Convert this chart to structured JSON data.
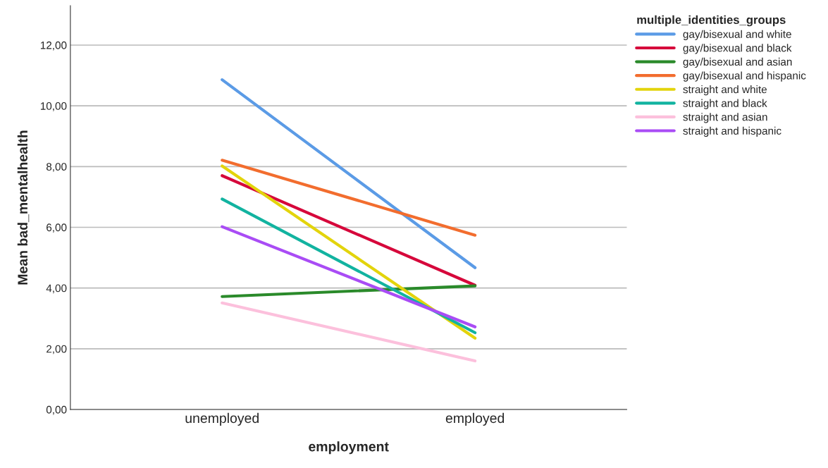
{
  "chart_data": {
    "type": "line",
    "xlabel": "employment",
    "ylabel": "Mean bad_mentalhealth",
    "legend_title": "multiple_identities_groups",
    "legend": "right",
    "grid": "y",
    "marker": "none",
    "line_style": "solid",
    "categories": [
      "unemployed",
      "employed"
    ],
    "ylim": [
      0,
      13.3
    ],
    "yticks": [
      {
        "value": 0,
        "label": "0,00"
      },
      {
        "value": 2,
        "label": "2,00"
      },
      {
        "value": 4,
        "label": "4,00"
      },
      {
        "value": 6,
        "label": "6,00"
      },
      {
        "value": 8,
        "label": "8,00"
      },
      {
        "value": 10,
        "label": "10,00"
      },
      {
        "value": 12,
        "label": "12,00"
      }
    ],
    "series": [
      {
        "name": "gay/bisexual and white",
        "color": "#5b9be6",
        "values": [
          10.86,
          4.67
        ]
      },
      {
        "name": "gay/bisexual and black",
        "color": "#d6083b",
        "values": [
          7.7,
          4.09
        ]
      },
      {
        "name": "gay/bisexual and asian",
        "color": "#2a8a2a",
        "values": [
          3.72,
          4.07
        ]
      },
      {
        "name": "gay/bisexual and hispanic",
        "color": "#f26d2e",
        "values": [
          8.21,
          5.74
        ]
      },
      {
        "name": "straight and white",
        "color": "#e3d40c",
        "values": [
          8.02,
          2.35
        ]
      },
      {
        "name": "straight and black",
        "color": "#12b3a0",
        "values": [
          6.93,
          2.53
        ]
      },
      {
        "name": "straight and asian",
        "color": "#fcc0dc",
        "values": [
          3.51,
          1.6
        ]
      },
      {
        "name": "straight and hispanic",
        "color": "#a94cf5",
        "values": [
          6.02,
          2.72
        ]
      }
    ]
  }
}
